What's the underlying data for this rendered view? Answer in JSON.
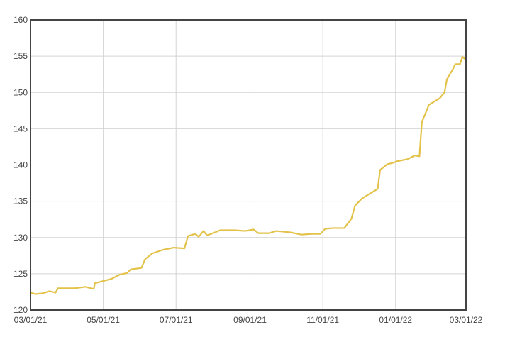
{
  "chart_data": {
    "type": "line",
    "color": "#e3c24a",
    "grid": true,
    "x": [
      "2021-03-01",
      "2021-03-05",
      "2021-03-11",
      "2021-03-17",
      "2021-03-22",
      "2021-03-24",
      "2021-03-29",
      "2021-04-07",
      "2021-04-16",
      "2021-04-23",
      "2021-04-24",
      "2021-05-01",
      "2021-05-08",
      "2021-05-15",
      "2021-05-21",
      "2021-05-24",
      "2021-06-02",
      "2021-06-05",
      "2021-06-11",
      "2021-06-20",
      "2021-06-29",
      "2021-07-08",
      "2021-07-11",
      "2021-07-17",
      "2021-07-20",
      "2021-07-24",
      "2021-07-27",
      "2021-08-01",
      "2021-08-07",
      "2021-08-19",
      "2021-08-28",
      "2021-09-04",
      "2021-09-08",
      "2021-09-17",
      "2021-09-23",
      "2021-10-05",
      "2021-10-14",
      "2021-10-23",
      "2021-10-30",
      "2021-11-03",
      "2021-11-10",
      "2021-11-19",
      "2021-11-25",
      "2021-11-28",
      "2021-12-04",
      "2021-12-13",
      "2021-12-17",
      "2021-12-19",
      "2021-12-25",
      "2021-12-30",
      "2022-01-02",
      "2022-01-11",
      "2022-01-17",
      "2022-01-21",
      "2022-01-23",
      "2022-01-29",
      "2022-02-07",
      "2022-02-11",
      "2022-02-13",
      "2022-02-18",
      "2022-02-20",
      "2022-02-24",
      "2022-02-26",
      "2022-03-01"
    ],
    "values": [
      122.4,
      122.2,
      122.3,
      122.6,
      122.4,
      123.0,
      123.0,
      123.0,
      123.2,
      122.9,
      123.7,
      124.0,
      124.3,
      124.9,
      125.1,
      125.6,
      125.8,
      127.0,
      127.8,
      128.3,
      128.6,
      128.5,
      130.2,
      130.5,
      130.1,
      130.9,
      130.3,
      130.6,
      131.0,
      131.0,
      130.9,
      131.1,
      130.6,
      130.6,
      130.9,
      130.7,
      130.4,
      130.5,
      130.5,
      131.2,
      131.3,
      131.3,
      132.6,
      134.4,
      135.4,
      136.3,
      136.7,
      139.3,
      140.1,
      140.3,
      140.5,
      140.8,
      141.3,
      141.2,
      145.9,
      148.3,
      149.2,
      150.0,
      151.8,
      153.2,
      153.9,
      153.9,
      154.9,
      154.5
    ],
    "xlim": [
      "2021-03-01",
      "2022-03-01"
    ],
    "xticks": [
      {
        "value": "2021-03-01",
        "label": "03/01/21"
      },
      {
        "value": "2021-05-01",
        "label": "05/01/21"
      },
      {
        "value": "2021-07-01",
        "label": "07/01/21"
      },
      {
        "value": "2021-09-01",
        "label": "09/01/21"
      },
      {
        "value": "2021-11-01",
        "label": "11/01/21"
      },
      {
        "value": "2022-01-01",
        "label": "01/01/22"
      },
      {
        "value": "2022-03-01",
        "label": "03/01/22"
      }
    ],
    "ylim": [
      120,
      160
    ],
    "yticks": [
      120,
      125,
      130,
      135,
      140,
      145,
      150,
      155,
      160
    ]
  }
}
